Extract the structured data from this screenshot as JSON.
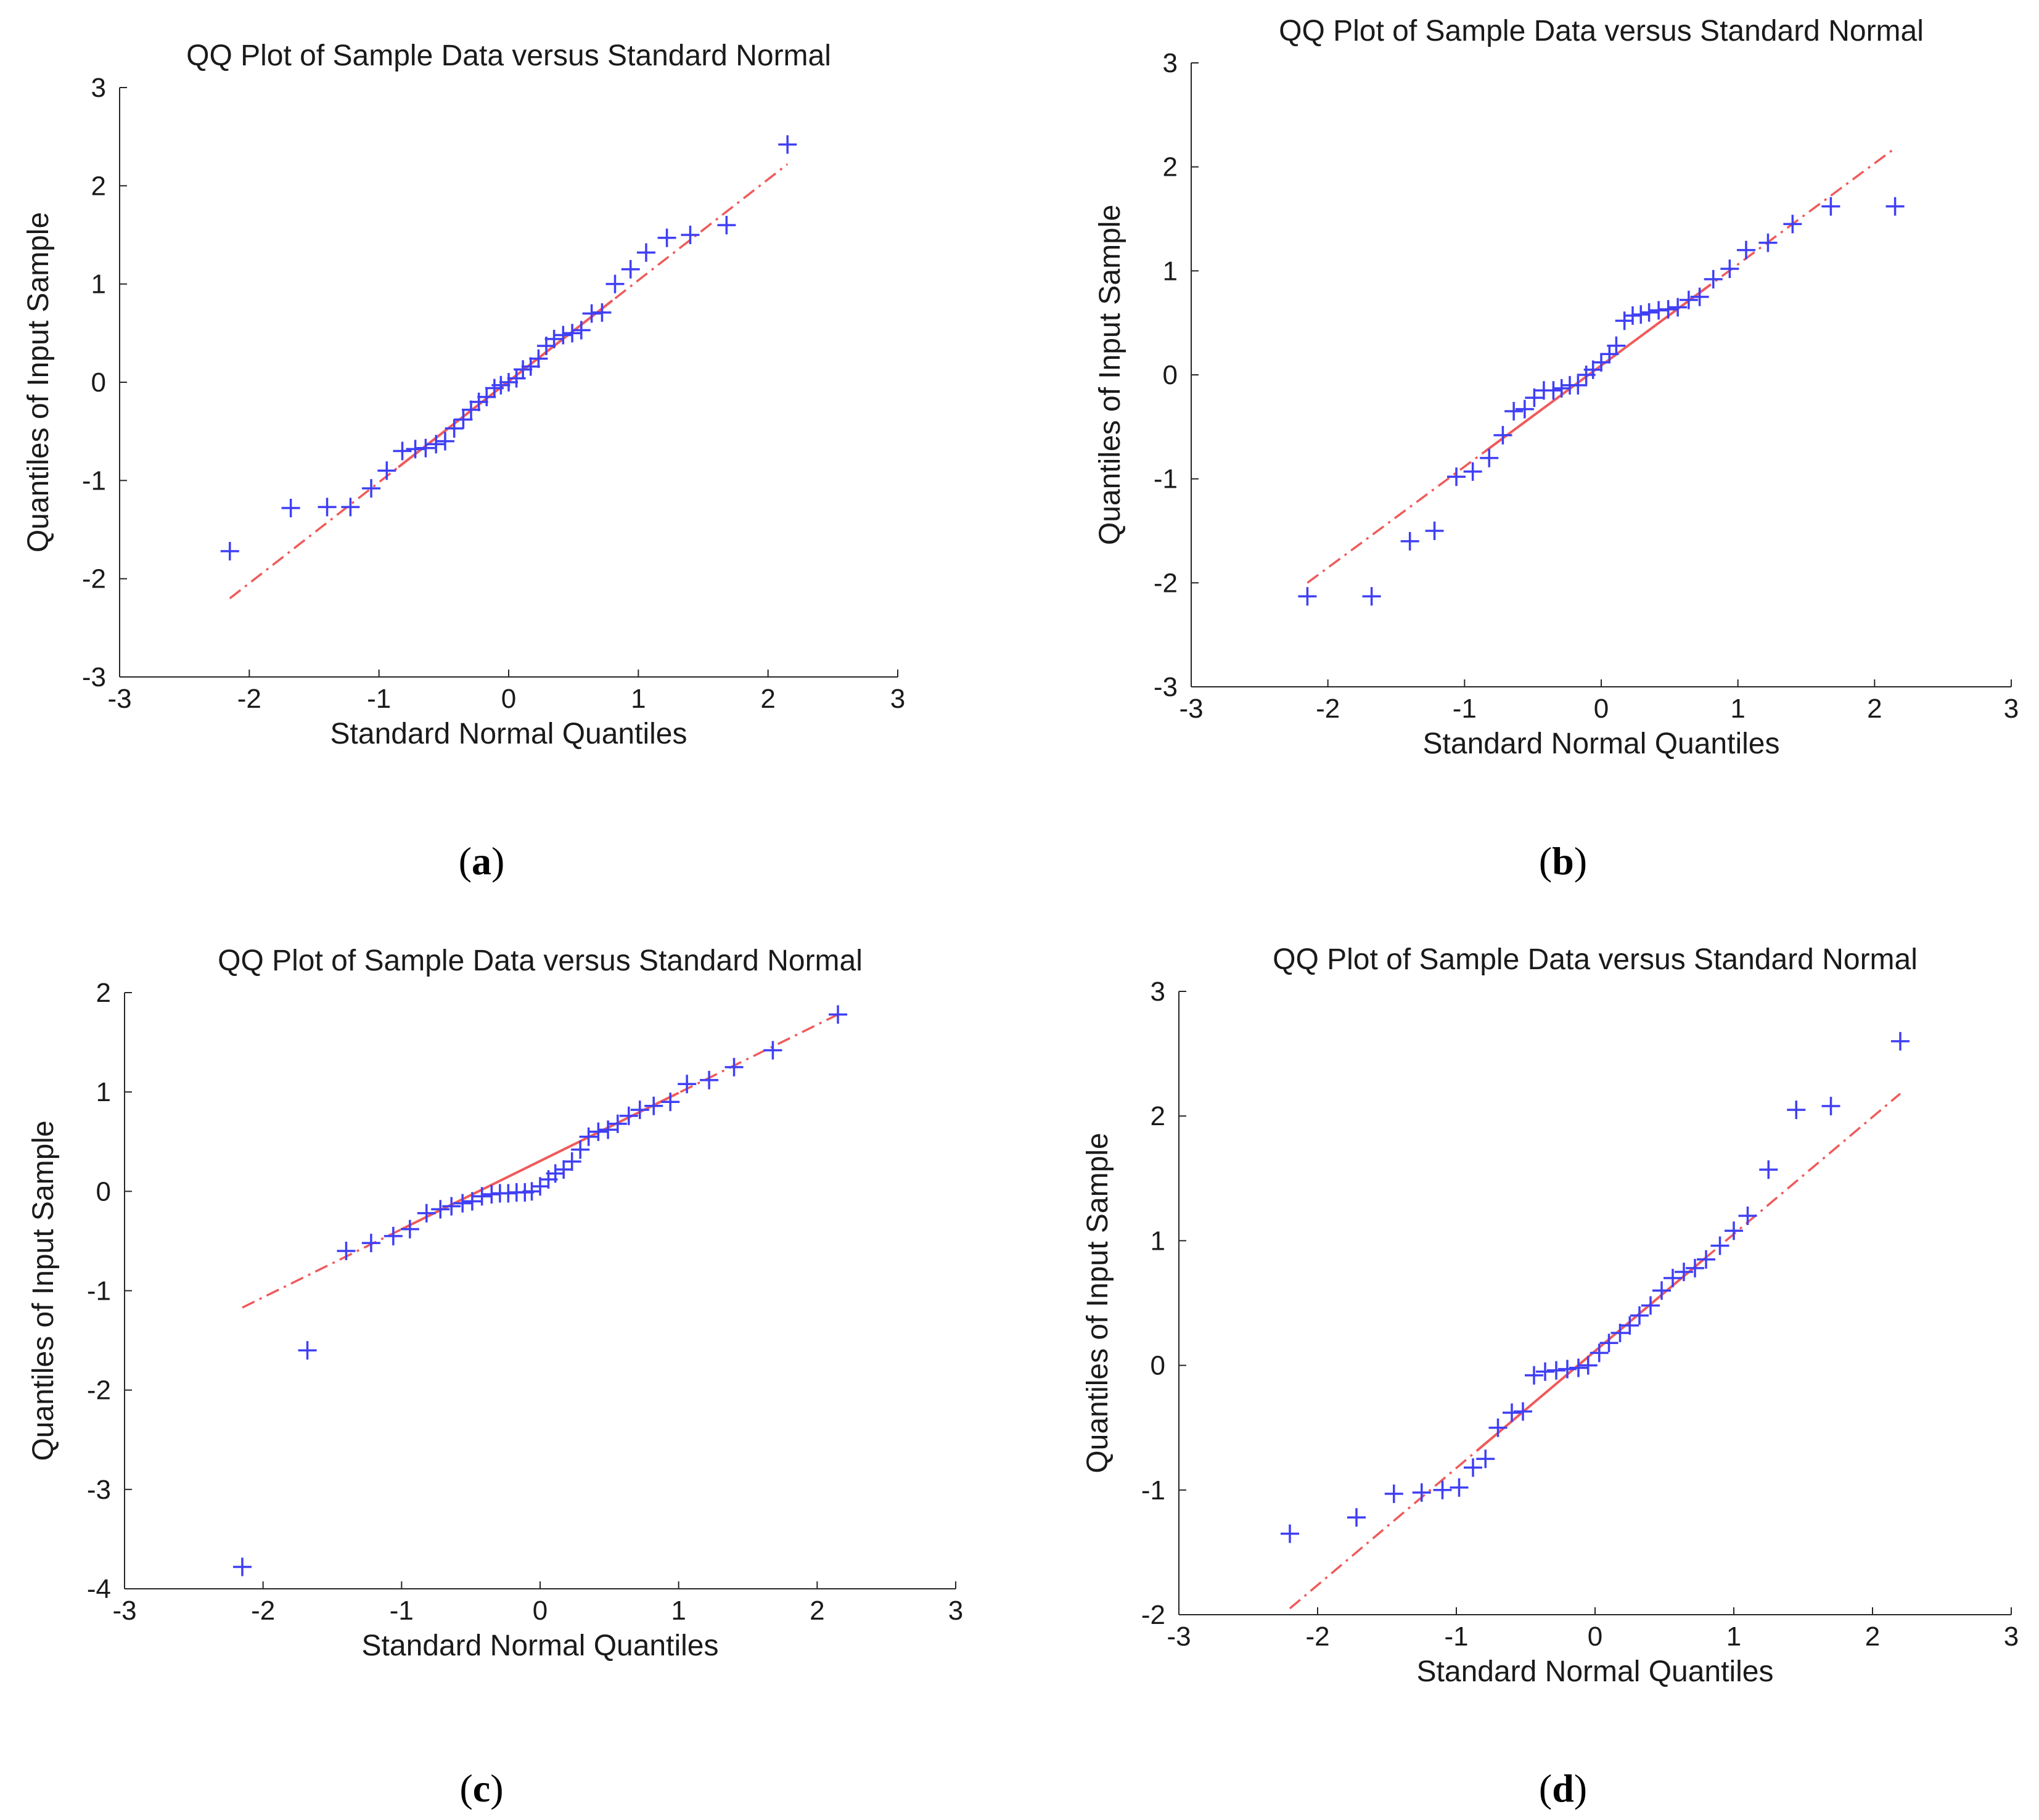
{
  "figure": {
    "colors": {
      "points": "#3f3ff5",
      "reference_line": "#f05a5a",
      "axes": "#262626",
      "text": "#1a1a1a"
    }
  },
  "chart_data": [
    {
      "id": "a",
      "caption": {
        "open": "(",
        "letter": "a",
        "close": ")"
      },
      "type": "scatter",
      "title": "QQ Plot of Sample Data versus Standard Normal",
      "xlabel": "Standard Normal Quantiles",
      "ylabel": "Quantiles of Input Sample",
      "xlim": [
        -3,
        3
      ],
      "ylim": [
        -3,
        3
      ],
      "xticks": [
        -3,
        -2,
        -1,
        0,
        1,
        2,
        3
      ],
      "yticks": [
        -3,
        -2,
        -1,
        0,
        1,
        2,
        3
      ],
      "reference_line": {
        "x": [
          -2.15,
          2.15
        ],
        "y": [
          -2.2,
          2.22
        ],
        "solid_x": [
          -0.85,
          0.8
        ]
      },
      "points": {
        "x": [
          -2.15,
          -1.68,
          -1.4,
          -1.22,
          -1.06,
          -0.94,
          -0.82,
          -0.72,
          -0.64,
          -0.56,
          -0.49,
          -0.42,
          -0.35,
          -0.29,
          -0.23,
          -0.17,
          -0.11,
          -0.06,
          0.0,
          0.06,
          0.11,
          0.17,
          0.23,
          0.29,
          0.35,
          0.42,
          0.49,
          0.56,
          0.64,
          0.72,
          0.82,
          0.94,
          1.06,
          1.22,
          1.4,
          1.68,
          2.15
        ],
        "y": [
          -1.72,
          -1.28,
          -1.27,
          -1.27,
          -1.08,
          -0.9,
          -0.7,
          -0.68,
          -0.67,
          -0.63,
          -0.6,
          -0.47,
          -0.38,
          -0.28,
          -0.2,
          -0.15,
          -0.06,
          -0.03,
          0.0,
          0.04,
          0.13,
          0.16,
          0.24,
          0.37,
          0.44,
          0.48,
          0.5,
          0.53,
          0.7,
          0.71,
          1.0,
          1.15,
          1.32,
          1.47,
          1.5,
          1.6,
          2.42
        ]
      }
    },
    {
      "id": "b",
      "caption": {
        "open": "(",
        "letter": "b",
        "close": ")"
      },
      "type": "scatter",
      "title": "QQ Plot of Sample Data versus Standard Normal",
      "xlabel": "Standard Normal Quantiles",
      "ylabel": "Quantiles of Input Sample",
      "xlim": [
        -3,
        3
      ],
      "ylim": [
        -3,
        3
      ],
      "xticks": [
        -3,
        -2,
        -1,
        0,
        1,
        2,
        3
      ],
      "yticks": [
        -3,
        -2,
        -1,
        0,
        1,
        2,
        3
      ],
      "reference_line": {
        "x": [
          -2.15,
          2.15
        ],
        "y": [
          -2.0,
          2.18
        ],
        "solid_x": [
          -0.85,
          0.8
        ]
      },
      "points": {
        "x": [
          -2.15,
          -1.68,
          -1.4,
          -1.22,
          -1.06,
          -0.94,
          -0.82,
          -0.72,
          -0.64,
          -0.56,
          -0.49,
          -0.42,
          -0.35,
          -0.29,
          -0.23,
          -0.17,
          -0.11,
          -0.06,
          0.0,
          0.06,
          0.11,
          0.17,
          0.23,
          0.29,
          0.35,
          0.42,
          0.49,
          0.56,
          0.64,
          0.72,
          0.82,
          0.94,
          1.06,
          1.22,
          1.4,
          1.68,
          2.15
        ],
        "y": [
          -2.13,
          -2.13,
          -1.6,
          -1.5,
          -0.98,
          -0.93,
          -0.8,
          -0.58,
          -0.35,
          -0.33,
          -0.22,
          -0.15,
          -0.15,
          -0.13,
          -0.1,
          -0.1,
          0.0,
          0.05,
          0.12,
          0.2,
          0.28,
          0.52,
          0.57,
          0.58,
          0.6,
          0.62,
          0.63,
          0.65,
          0.72,
          0.75,
          0.92,
          1.02,
          1.2,
          1.27,
          1.45,
          1.62,
          1.62
        ]
      }
    },
    {
      "id": "c",
      "caption": {
        "open": "(",
        "letter": "c",
        "close": ")"
      },
      "type": "scatter",
      "title": "QQ Plot of Sample Data versus Standard Normal",
      "xlabel": "Standard Normal Quantiles",
      "ylabel": "Quantiles of Input Sample",
      "xlim": [
        -3,
        3
      ],
      "ylim": [
        -4,
        2
      ],
      "xticks": [
        -3,
        -2,
        -1,
        0,
        1,
        2,
        3
      ],
      "yticks": [
        -4,
        -3,
        -2,
        -1,
        0,
        1,
        2
      ],
      "reference_line": {
        "x": [
          -2.15,
          2.15
        ],
        "y": [
          -1.17,
          1.78
        ],
        "solid_x": [
          -1.0,
          1.0
        ]
      },
      "points": {
        "x": [
          -2.15,
          -1.68,
          -1.4,
          -1.22,
          -1.06,
          -0.94,
          -0.82,
          -0.72,
          -0.64,
          -0.56,
          -0.49,
          -0.42,
          -0.35,
          -0.29,
          -0.23,
          -0.17,
          -0.11,
          -0.06,
          0.0,
          0.06,
          0.11,
          0.17,
          0.23,
          0.29,
          0.35,
          0.42,
          0.49,
          0.56,
          0.64,
          0.72,
          0.82,
          0.94,
          1.06,
          1.22,
          1.4,
          1.68,
          2.15
        ],
        "y": [
          -3.78,
          -1.6,
          -0.6,
          -0.52,
          -0.45,
          -0.38,
          -0.22,
          -0.18,
          -0.15,
          -0.12,
          -0.1,
          -0.05,
          -0.03,
          -0.02,
          -0.02,
          -0.01,
          -0.01,
          0.0,
          0.05,
          0.12,
          0.18,
          0.22,
          0.3,
          0.42,
          0.55,
          0.6,
          0.62,
          0.68,
          0.76,
          0.82,
          0.86,
          0.9,
          1.08,
          1.12,
          1.25,
          1.42,
          1.78
        ]
      }
    },
    {
      "id": "d",
      "caption": {
        "open": "(",
        "letter": "d",
        "close": ")"
      },
      "type": "scatter",
      "title": "QQ Plot of Sample Data versus Standard Normal",
      "xlabel": "Standard Normal Quantiles",
      "ylabel": "Quantiles of Input Sample",
      "xlim": [
        -3,
        3
      ],
      "ylim": [
        -2,
        3
      ],
      "xticks": [
        -3,
        -2,
        -1,
        0,
        1,
        2,
        3
      ],
      "yticks": [
        -2,
        -1,
        0,
        1,
        2,
        3
      ],
      "reference_line": {
        "x": [
          -2.2,
          2.2
        ],
        "y": [
          -1.95,
          2.18
        ],
        "solid_x": [
          -0.85,
          0.8
        ]
      },
      "points": {
        "x": [
          -2.2,
          -1.72,
          -1.45,
          -1.25,
          -1.1,
          -0.98,
          -0.88,
          -0.79,
          -0.7,
          -0.6,
          -0.52,
          -0.44,
          -0.36,
          -0.28,
          -0.2,
          -0.12,
          -0.05,
          0.03,
          0.1,
          0.18,
          0.25,
          0.32,
          0.4,
          0.48,
          0.56,
          0.64,
          0.72,
          0.8,
          0.9,
          1.0,
          1.1,
          1.25,
          1.45,
          1.7,
          2.2
        ],
        "y": [
          -1.35,
          -1.22,
          -1.03,
          -1.02,
          -1.0,
          -0.98,
          -0.82,
          -0.75,
          -0.5,
          -0.38,
          -0.37,
          -0.08,
          -0.05,
          -0.04,
          -0.03,
          -0.02,
          0.0,
          0.1,
          0.18,
          0.26,
          0.32,
          0.4,
          0.48,
          0.6,
          0.7,
          0.75,
          0.78,
          0.85,
          0.96,
          1.08,
          1.2,
          1.57,
          2.05,
          2.08,
          2.6
        ]
      }
    }
  ]
}
